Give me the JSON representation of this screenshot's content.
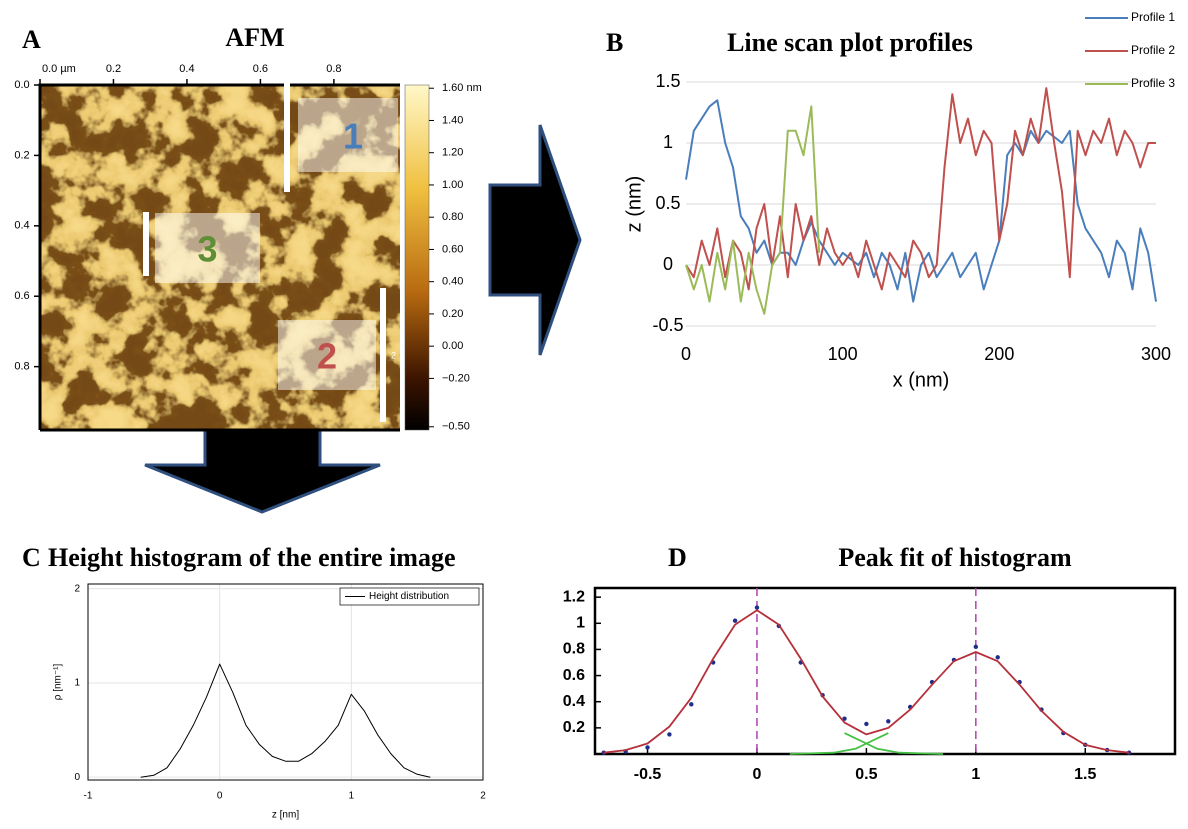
{
  "chart_data": [
    {
      "type": "image",
      "panel": "A",
      "title": "AFM",
      "xlim": [
        0,
        0.98
      ],
      "ylim": [
        0,
        0.98
      ],
      "y_inverted": true,
      "xticks": [
        {
          "value": 0,
          "label": "0.0 µm"
        },
        0.2,
        0.4,
        0.6,
        0.8
      ],
      "yticks": [
        {
          "value": 0,
          "label": "0.0"
        },
        0.2,
        0.4,
        0.6,
        0.8
      ],
      "colorbar": {
        "clim": [
          -0.52,
          1.62
        ],
        "ticks": [
          {
            "value": 1.6,
            "label": "1.60 nm"
          },
          {
            "value": 1.4,
            "label": "1.40"
          },
          {
            "value": 1.2,
            "label": "1.20"
          },
          {
            "value": 1,
            "label": "1.00"
          },
          {
            "value": 0.8,
            "label": "0.80"
          },
          {
            "value": 0.6,
            "label": "0.60"
          },
          {
            "value": 0.4,
            "label": "0.40"
          },
          {
            "value": 0.2,
            "label": "0.20"
          },
          {
            "value": 0,
            "label": "0.00"
          },
          {
            "value": -0.2,
            "label": "−0.20"
          },
          {
            "value": -0.5,
            "label": "−0.50"
          }
        ]
      },
      "regions": [
        "1",
        "3",
        "2"
      ],
      "region_colors": [
        "#4a7ebb",
        "#5e8f35",
        "#c0504d"
      ],
      "scale_label": "2"
    },
    {
      "type": "line",
      "panel": "B",
      "title": "Line scan plot profiles",
      "xlabel": "x (nm)",
      "ylabel": "z (nm)",
      "x": [
        0,
        5,
        10,
        15,
        20,
        25,
        30,
        35,
        40,
        45,
        50,
        55,
        60,
        65,
        70,
        75,
        80,
        85,
        90,
        95,
        100,
        105,
        110,
        115,
        120,
        125,
        130,
        135,
        140,
        145,
        150,
        155,
        160,
        165,
        170,
        175,
        180,
        185,
        190,
        195,
        200,
        205,
        210,
        215,
        220,
        225,
        230,
        235,
        240,
        245,
        250,
        255,
        260,
        265,
        270,
        275,
        280,
        285,
        290,
        295,
        300
      ],
      "series": [
        {
          "name": "Profile 1",
          "color": "#4a7ebb",
          "values": [
            0.7,
            1.1,
            1.2,
            1.3,
            1.35,
            1.0,
            0.8,
            0.4,
            0.3,
            0.1,
            0.2,
            0.0,
            0.1,
            0.1,
            0.0,
            0.2,
            0.35,
            0.2,
            0.1,
            0.0,
            0.1,
            0.05,
            0.0,
            0.1,
            -0.1,
            0.1,
            0.0,
            -0.2,
            0.1,
            -0.3,
            0.0,
            0.1,
            -0.1,
            0.0,
            0.1,
            -0.1,
            0.0,
            0.1,
            -0.2,
            0.0,
            0.2,
            0.9,
            1.0,
            0.9,
            1.1,
            1.0,
            1.1,
            1.05,
            1.0,
            1.1,
            0.5,
            0.3,
            0.2,
            0.1,
            -0.1,
            0.2,
            0.1,
            -0.2,
            0.3,
            0.1,
            -0.3
          ]
        },
        {
          "name": "Profile 2",
          "color": "#c0504d",
          "values": [
            0.0,
            -0.1,
            0.2,
            0.0,
            0.3,
            -0.1,
            0.2,
            0.1,
            -0.2,
            0.3,
            0.5,
            0.0,
            0.4,
            -0.1,
            0.5,
            0.2,
            0.4,
            0.0,
            0.3,
            0.1,
            0.0,
            0.1,
            -0.1,
            0.2,
            0.0,
            -0.2,
            0.1,
            0.0,
            -0.1,
            0.2,
            0.1,
            -0.1,
            0.0,
            0.8,
            1.4,
            1.0,
            1.2,
            0.9,
            1.1,
            1.0,
            0.2,
            0.5,
            1.1,
            0.9,
            1.2,
            1.0,
            1.45,
            1.0,
            0.6,
            -0.1,
            1.1,
            0.9,
            1.1,
            1.0,
            1.2,
            0.9,
            1.1,
            1.0,
            0.8,
            1.0,
            1.0
          ]
        },
        {
          "name": "Profile 3",
          "color": "#9bbb59",
          "values": [
            0.0,
            -0.2,
            0.0,
            -0.3,
            0.1,
            -0.2,
            0.2,
            -0.3,
            0.1,
            -0.2,
            -0.4,
            0.0,
            0.1,
            1.1,
            1.1,
            0.9,
            1.3,
            0.1,
            null,
            null,
            null,
            null,
            null,
            null,
            null,
            null,
            null,
            null,
            null,
            null,
            null,
            null,
            null,
            null,
            null,
            null,
            null,
            null,
            null,
            null,
            null,
            null,
            null,
            null,
            null,
            null,
            null,
            null,
            null,
            null,
            null,
            null,
            null,
            null,
            null,
            null,
            null,
            null,
            null,
            null,
            null
          ]
        }
      ],
      "xlim": [
        0,
        300
      ],
      "ylim": [
        -0.5,
        1.5
      ],
      "xticks": [
        0,
        100,
        200,
        300
      ],
      "yticks": [
        -0.5,
        0,
        0.5,
        1,
        1.5
      ],
      "grid": "y",
      "legend": "upper right"
    },
    {
      "type": "line",
      "panel": "C",
      "title": "Height histogram of the entire image",
      "xlabel": "z [nm]",
      "ylabel": "ρ [nm⁻¹]",
      "x": [
        -0.6,
        -0.5,
        -0.4,
        -0.3,
        -0.2,
        -0.1,
        0,
        0.1,
        0.2,
        0.3,
        0.4,
        0.5,
        0.6,
        0.7,
        0.8,
        0.9,
        1.0,
        1.1,
        1.2,
        1.3,
        1.4,
        1.5,
        1.6
      ],
      "series": [
        {
          "name": "Height distribution",
          "color": "#000000",
          "values": [
            0,
            0.02,
            0.1,
            0.3,
            0.55,
            0.85,
            1.2,
            0.9,
            0.55,
            0.35,
            0.22,
            0.17,
            0.17,
            0.25,
            0.38,
            0.55,
            0.88,
            0.7,
            0.45,
            0.25,
            0.1,
            0.03,
            0.0
          ]
        }
      ],
      "xlim": [
        -1,
        2
      ],
      "ylim": [
        -0.03,
        2.05
      ],
      "xticks": [
        -1,
        0,
        1,
        2
      ],
      "yticks": [
        0,
        1,
        2
      ],
      "grid": "both",
      "legend": "upper right"
    },
    {
      "type": "line",
      "panel": "D",
      "title": "Peak fit of histogram",
      "x": [
        -0.7,
        -0.6,
        -0.5,
        -0.4,
        -0.3,
        -0.2,
        -0.1,
        0,
        0.1,
        0.2,
        0.3,
        0.4,
        0.5,
        0.6,
        0.7,
        0.8,
        0.9,
        1.0,
        1.1,
        1.2,
        1.3,
        1.4,
        1.5,
        1.6,
        1.7
      ],
      "series": [
        {
          "color": "#1c2f8a",
          "style": "dots",
          "values": [
            0.01,
            0.02,
            0.05,
            0.15,
            0.38,
            0.7,
            1.02,
            1.12,
            0.98,
            0.7,
            0.45,
            0.27,
            0.23,
            0.25,
            0.36,
            0.55,
            0.72,
            0.82,
            0.74,
            0.55,
            0.34,
            0.16,
            0.07,
            0.03,
            0.01
          ]
        },
        {
          "color": "#b5303a",
          "values": [
            0.01,
            0.03,
            0.08,
            0.21,
            0.43,
            0.73,
            0.99,
            1.1,
            0.99,
            0.73,
            0.44,
            0.24,
            0.15,
            0.2,
            0.34,
            0.53,
            0.71,
            0.78,
            0.71,
            0.53,
            0.33,
            0.17,
            0.07,
            0.03,
            0.01
          ]
        },
        {
          "color": "#44c044",
          "x": [
            0.15,
            0.35,
            0.45,
            0.5,
            0.55,
            0.6
          ],
          "values": [
            0,
            0.01,
            0.04,
            0.08,
            0.12,
            0.16
          ]
        },
        {
          "color": "#44c044",
          "x": [
            0.4,
            0.45,
            0.5,
            0.55,
            0.65,
            0.85
          ],
          "values": [
            0.16,
            0.12,
            0.08,
            0.04,
            0.01,
            0
          ]
        }
      ],
      "xlim": [
        -0.74,
        1.91
      ],
      "ylim": [
        0,
        1.27
      ],
      "xticks": [
        -0.5,
        0,
        0.5,
        1,
        1.5
      ],
      "yticks": [
        0.2,
        0.4,
        0.6,
        0.8,
        1,
        1.2
      ],
      "vlines": [
        0,
        1
      ],
      "vline_color": "#b040b0"
    }
  ]
}
